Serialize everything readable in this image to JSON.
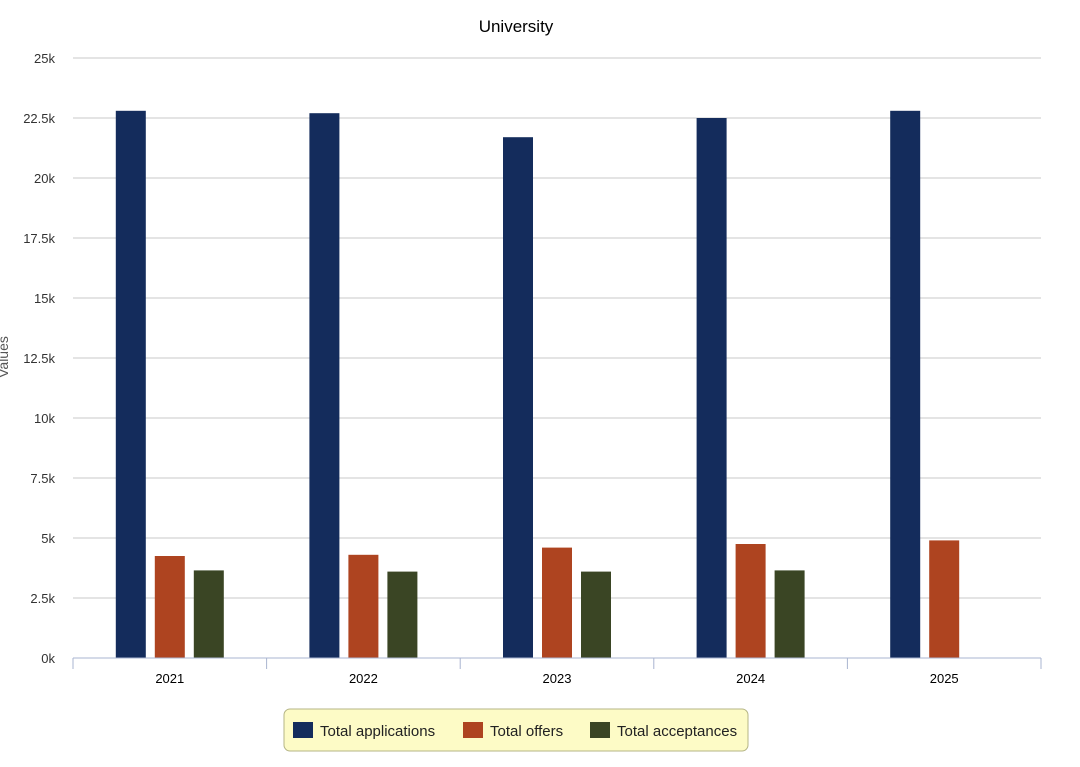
{
  "chart_data": {
    "type": "bar",
    "title": "University",
    "xlabel": "",
    "ylabel": "Values",
    "ylim": [
      0,
      25000
    ],
    "yticks": [
      "0k",
      "2.5k",
      "5k",
      "7.5k",
      "10k",
      "12.5k",
      "15k",
      "17.5k",
      "20k",
      "22.5k",
      "25k"
    ],
    "categories": [
      "2021",
      "2022",
      "2023",
      "2024",
      "2025"
    ],
    "series": [
      {
        "name": "Total applications",
        "color": "#142c5c",
        "values": [
          22800,
          22700,
          21700,
          22500,
          22800
        ]
      },
      {
        "name": "Total offers",
        "color": "#ae4420",
        "values": [
          4250,
          4300,
          4600,
          4750,
          4900
        ]
      },
      {
        "name": "Total acceptances",
        "color": "#3a4524",
        "values": [
          3650,
          3600,
          3600,
          3650,
          null
        ]
      }
    ],
    "grid": true,
    "legend_position": "bottom",
    "legend_background": "#fdfbc6"
  }
}
